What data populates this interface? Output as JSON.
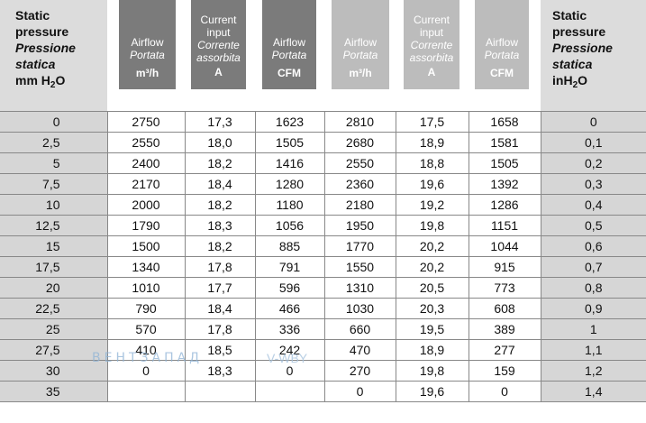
{
  "header": {
    "left": {
      "line1": "Static",
      "line2": "pressure",
      "line3": "Pressione",
      "line4": "statica",
      "line5": "mm H",
      "sub": "2",
      "tail": "O"
    },
    "right": {
      "line1": "Static",
      "line2": "pressure",
      "line3": "Pressione",
      "line4": "statica",
      "line5": "inH",
      "sub": "2",
      "tail": "O"
    },
    "groups": [
      {
        "col": "airflow_m3h",
        "l1": "",
        "l2": "Airflow",
        "it": "Portata",
        "unit": "m³/h",
        "tone": "dark"
      },
      {
        "col": "current_a",
        "l1": "Current",
        "l2": "input",
        "it": "Corrente assorbita",
        "unit": "A",
        "tone": "dark"
      },
      {
        "col": "airflow_cfm",
        "l1": "",
        "l2": "Airflow",
        "it": "Portata",
        "unit": "CFM",
        "tone": "dark"
      },
      {
        "col": "airflow_m3h_2",
        "l1": "",
        "l2": "Airflow",
        "it": "Portata",
        "unit": "m³/h",
        "tone": "mid"
      },
      {
        "col": "current_a_2",
        "l1": "Current",
        "l2": "input",
        "it": "Corrente assorbita",
        "unit": "A",
        "tone": "mid"
      },
      {
        "col": "airflow_cfm_2",
        "l1": "",
        "l2": "Airflow",
        "it": "Portata",
        "unit": "CFM",
        "tone": "mid"
      }
    ]
  },
  "rows": [
    [
      "0",
      "2750",
      "17,3",
      "1623",
      "2810",
      "17,5",
      "1658",
      "0"
    ],
    [
      "2,5",
      "2550",
      "18,0",
      "1505",
      "2680",
      "18,9",
      "1581",
      "0,1"
    ],
    [
      "5",
      "2400",
      "18,2",
      "1416",
      "2550",
      "18,8",
      "1505",
      "0,2"
    ],
    [
      "7,5",
      "2170",
      "18,4",
      "1280",
      "2360",
      "19,6",
      "1392",
      "0,3"
    ],
    [
      "10",
      "2000",
      "18,2",
      "1180",
      "2180",
      "19,2",
      "1286",
      "0,4"
    ],
    [
      "12,5",
      "1790",
      "18,3",
      "1056",
      "1950",
      "19,8",
      "1151",
      "0,5"
    ],
    [
      "15",
      "1500",
      "18,2",
      "885",
      "1770",
      "20,2",
      "1044",
      "0,6"
    ],
    [
      "17,5",
      "1340",
      "17,8",
      "791",
      "1550",
      "20,2",
      "915",
      "0,7"
    ],
    [
      "20",
      "1010",
      "17,7",
      "596",
      "1310",
      "20,5",
      "773",
      "0,8"
    ],
    [
      "22,5",
      "790",
      "18,4",
      "466",
      "1030",
      "20,3",
      "608",
      "0,9"
    ],
    [
      "25",
      "570",
      "17,8",
      "336",
      "660",
      "19,5",
      "389",
      "1"
    ],
    [
      "27,5",
      "410",
      "18,5",
      "242",
      "470",
      "18,9",
      "277",
      "1,1"
    ],
    [
      "30",
      "0",
      "18,3",
      "0",
      "270",
      "19,8",
      "159",
      "1,2"
    ],
    [
      "35",
      "",
      "",
      "",
      "0",
      "19,6",
      "0",
      "1,4"
    ]
  ],
  "watermark": {
    "text": "ВЕНТЗАПАД",
    "suffix": "V-WBY"
  },
  "colors": {
    "dark_header": "#7b7b7b",
    "mid_header": "#bcbcbc",
    "side": "#d6d6d6"
  }
}
